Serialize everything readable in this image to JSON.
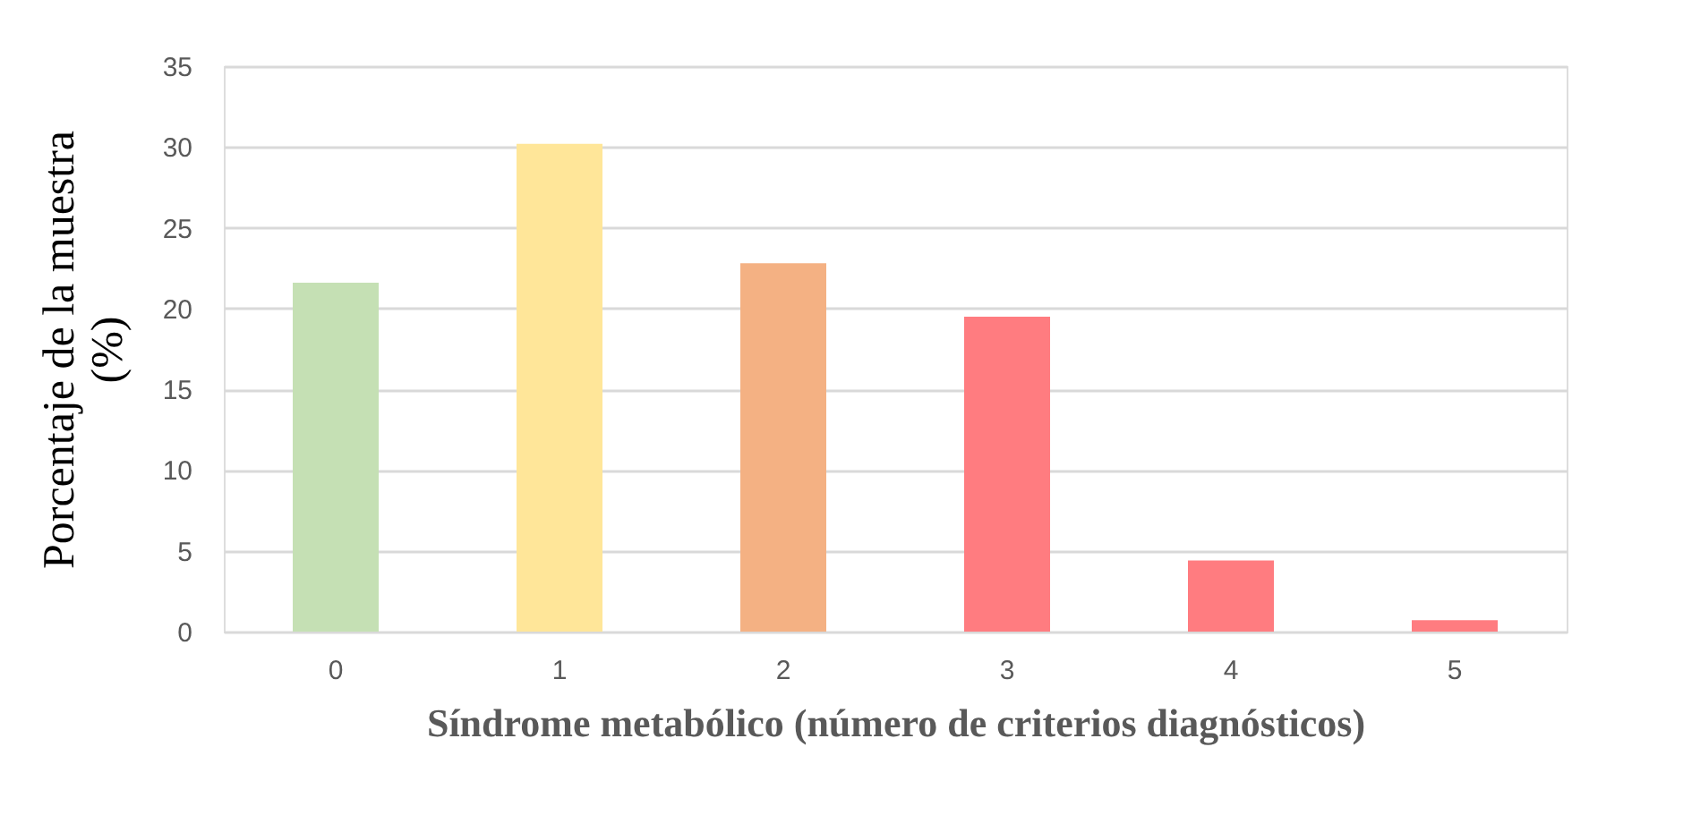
{
  "chart_data": {
    "type": "bar",
    "xlabel": "Síndrome metabólico (número de criterios diagnósticos)",
    "ylabel": "Porcentaje de la muestra (%)",
    "categories": [
      "0",
      "1",
      "2",
      "3",
      "4",
      "5"
    ],
    "values": [
      21.6,
      30.2,
      22.8,
      19.5,
      4.4,
      0.7
    ],
    "colors": [
      "#c5e0b4",
      "#ffe699",
      "#f4b183",
      "#ff7c80",
      "#ff7c80",
      "#ff7c80"
    ],
    "ylim": [
      0,
      35
    ],
    "yticks": [
      0,
      5,
      10,
      15,
      20,
      25,
      30,
      35
    ],
    "grid": "y"
  }
}
